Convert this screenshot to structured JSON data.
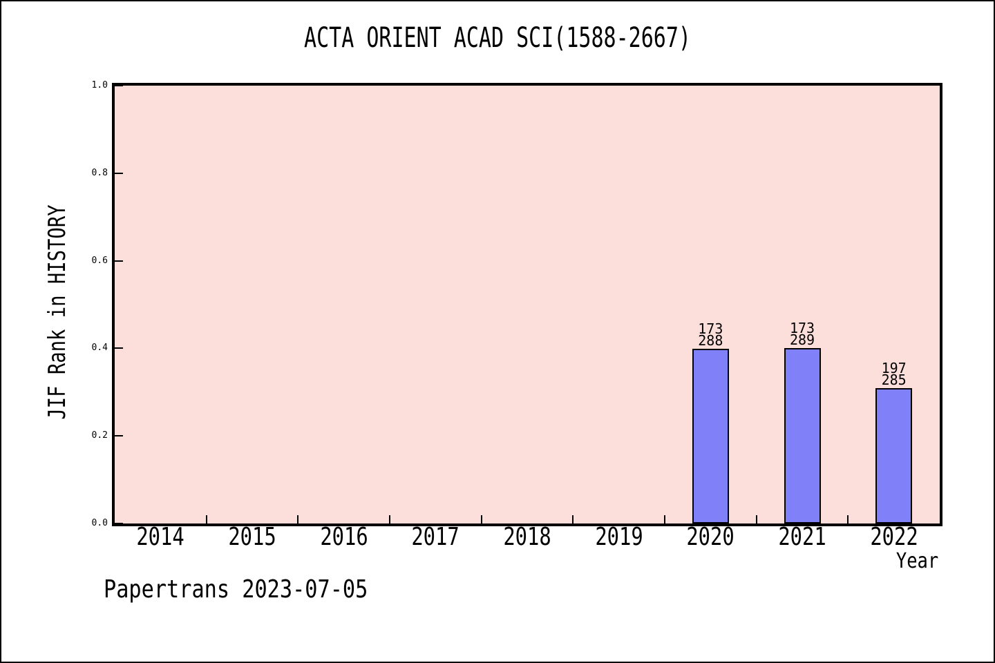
{
  "title": "ACTA ORIENT ACAD SCI(1588-2667)",
  "footer": "Papertrans 2023-07-05",
  "chart_data": {
    "type": "bar",
    "title": "ACTA ORIENT ACAD SCI(1588-2667)",
    "xlabel": "Year",
    "ylabel": "JIF Rank in HISTORY",
    "categories": [
      "2014",
      "2015",
      "2016",
      "2017",
      "2018",
      "2019",
      "2020",
      "2021",
      "2022"
    ],
    "values": [
      null,
      null,
      null,
      null,
      null,
      null,
      0.399,
      0.401,
      0.309
    ],
    "annotations": [
      {
        "category": "2020",
        "lines": [
          "173",
          "288"
        ]
      },
      {
        "category": "2021",
        "lines": [
          "173",
          "289"
        ]
      },
      {
        "category": "2022",
        "lines": [
          "197",
          "285"
        ]
      }
    ],
    "ylim": [
      0,
      1
    ],
    "yticks": [
      0.0,
      0.2,
      0.4,
      0.6,
      0.8,
      1.0
    ],
    "ytick_labels": [
      "0.0",
      "0.2",
      "0.4",
      "0.6",
      "0.8",
      "1.0"
    ],
    "grid": false,
    "legend": null,
    "colors": {
      "bar_fill": "#8080f8",
      "bar_edge": "#000000",
      "plot_background": "#fcdedb",
      "figure_background": "#ffffff",
      "text": "#000000"
    }
  }
}
